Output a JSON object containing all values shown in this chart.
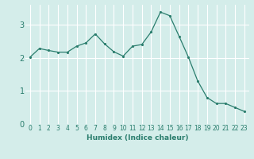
{
  "x": [
    0,
    1,
    2,
    3,
    4,
    5,
    6,
    7,
    8,
    9,
    10,
    11,
    12,
    13,
    14,
    15,
    16,
    17,
    18,
    19,
    20,
    21,
    22,
    23
  ],
  "y": [
    2.02,
    2.28,
    2.22,
    2.17,
    2.17,
    2.35,
    2.45,
    2.72,
    2.42,
    2.18,
    2.05,
    2.35,
    2.4,
    2.78,
    3.38,
    3.27,
    2.65,
    2.02,
    1.3,
    0.8,
    0.62,
    0.62,
    0.5,
    0.38
  ],
  "xlabel": "Humidex (Indice chaleur)",
  "line_color": "#2a7d6d",
  "marker_color": "#2a7d6d",
  "bg_color": "#d4edea",
  "grid_color": "#ffffff",
  "ylim": [
    0,
    3.6
  ],
  "xlim": [
    -0.5,
    23.5
  ],
  "yticks": [
    0,
    1,
    2,
    3
  ],
  "xticks": [
    0,
    1,
    2,
    3,
    4,
    5,
    6,
    7,
    8,
    9,
    10,
    11,
    12,
    13,
    14,
    15,
    16,
    17,
    18,
    19,
    20,
    21,
    22,
    23
  ],
  "xlabel_fontsize": 6.5,
  "tick_fontsize": 5.5,
  "ytick_fontsize": 7.0
}
